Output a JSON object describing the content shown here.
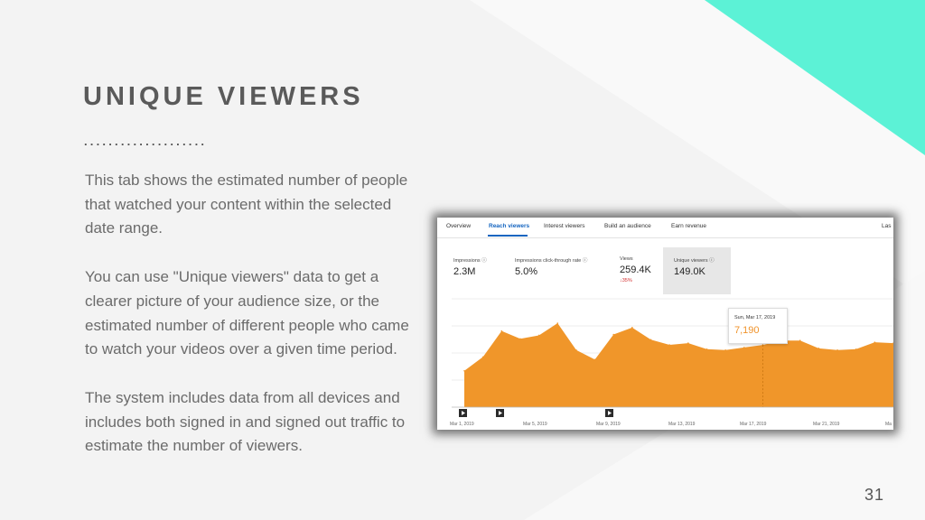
{
  "slide": {
    "title": "UNIQUE VIEWERS",
    "divider": "....................",
    "paragraphs": [
      "This tab shows the estimated number of people that watched your content within the selected date range.",
      "You can use \"Unique viewers\" data to get a clearer picture of your audience size, or the estimated number of different people who came to watch your videos over a given time period.",
      "The system includes data from all devices and includes both signed in and signed out traffic to estimate the number of viewers."
    ],
    "page_number": "31",
    "accent_color": "#5cf2d6"
  },
  "screenshot": {
    "tabs": [
      {
        "label": "Overview",
        "active": false
      },
      {
        "label": "Reach viewers",
        "active": true
      },
      {
        "label": "Interest viewers",
        "active": false
      },
      {
        "label": "Build an audience",
        "active": false
      },
      {
        "label": "Earn revenue",
        "active": false
      },
      {
        "label": "Las",
        "active": false
      }
    ],
    "metrics": [
      {
        "label": "Impressions",
        "value": "2.3M",
        "delta": "",
        "icon": "info-icon"
      },
      {
        "label": "Impressions click-through rate",
        "value": "5.0%",
        "delta": "",
        "icon": "info-icon"
      },
      {
        "label": "Views",
        "value": "259.4K",
        "delta": "35%",
        "delta_icon": "arrow-down-icon"
      },
      {
        "label": "Unique viewers",
        "value": "149.0K",
        "delta": "",
        "icon": "info-icon",
        "selected": true
      }
    ],
    "tooltip": {
      "date": "Sun, Mar 17, 2019",
      "value": "7,190"
    },
    "chart_color": "#f0962a"
  },
  "chart_data": {
    "type": "area",
    "x": [
      "Mar 1",
      "Mar 2",
      "Mar 3",
      "Mar 4",
      "Mar 5",
      "Mar 6",
      "Mar 7",
      "Mar 8",
      "Mar 9",
      "Mar 10",
      "Mar 11",
      "Mar 12",
      "Mar 13",
      "Mar 14",
      "Mar 15",
      "Mar 16",
      "Mar 17",
      "Mar 18",
      "Mar 19",
      "Mar 20",
      "Mar 21",
      "Mar 22",
      "Mar 23",
      "Mar 24"
    ],
    "series": [
      {
        "values": [
          4200,
          5800,
          8800,
          7900,
          8300,
          9700,
          6600,
          5500,
          8400,
          9200,
          7800,
          7200,
          7400,
          6700,
          6600,
          6900,
          7190,
          7700,
          7700,
          6800,
          6600,
          6700,
          7500,
          7400
        ]
      }
    ],
    "xtick_labels": [
      "Mar 1, 2019",
      "Mar 5, 2019",
      "Mar 9, 2019",
      "Mar 13, 2019",
      "Mar 17, 2019",
      "Mar 21, 2019",
      "Ma"
    ],
    "ylim": [
      0,
      12000
    ],
    "grid": true
  }
}
